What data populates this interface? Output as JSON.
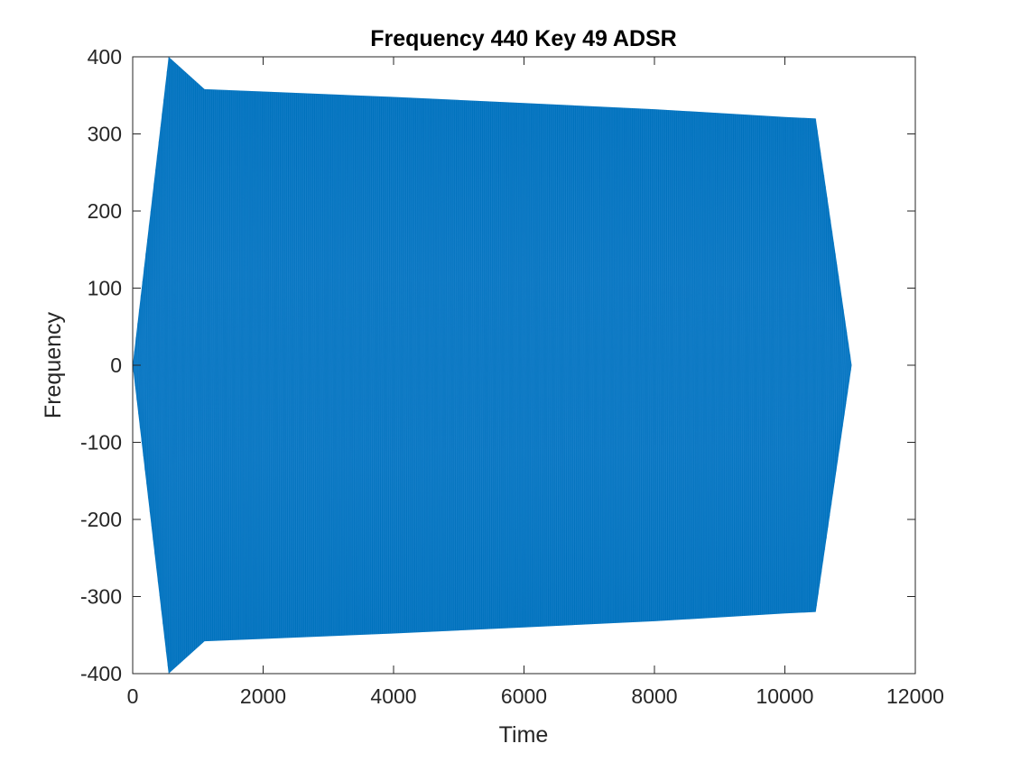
{
  "chart_data": {
    "type": "area",
    "title": "Frequency 440 Key 49 ADSR",
    "xlabel": "Time",
    "ylabel": "Frequency",
    "xlim": [
      0,
      12000
    ],
    "ylim": [
      -400,
      400
    ],
    "xticks": [
      0,
      2000,
      4000,
      6000,
      8000,
      10000,
      12000
    ],
    "yticks": [
      -400,
      -300,
      -200,
      -100,
      0,
      100,
      200,
      300,
      400
    ],
    "xtick_labels": [
      "0",
      "2000",
      "4000",
      "6000",
      "8000",
      "10000",
      "12000"
    ],
    "ytick_labels": [
      "-400",
      "-300",
      "-200",
      "-100",
      "0",
      "100",
      "200",
      "300",
      "400"
    ],
    "grid": false,
    "series": [
      {
        "color": "#0072BD",
        "envelope_upper": {
          "x": [
            0,
            551,
            1102,
            2000,
            4000,
            6000,
            8000,
            10000,
            10474,
            11024
          ],
          "y": [
            0,
            400,
            358,
            355,
            348,
            340,
            332,
            322,
            320,
            0
          ]
        },
        "envelope_lower": {
          "x": [
            0,
            551,
            1102,
            2000,
            4000,
            6000,
            8000,
            10000,
            10474,
            11024
          ],
          "y": [
            0,
            -400,
            -358,
            -355,
            -348,
            -340,
            -332,
            -322,
            -320,
            0
          ]
        }
      }
    ]
  }
}
